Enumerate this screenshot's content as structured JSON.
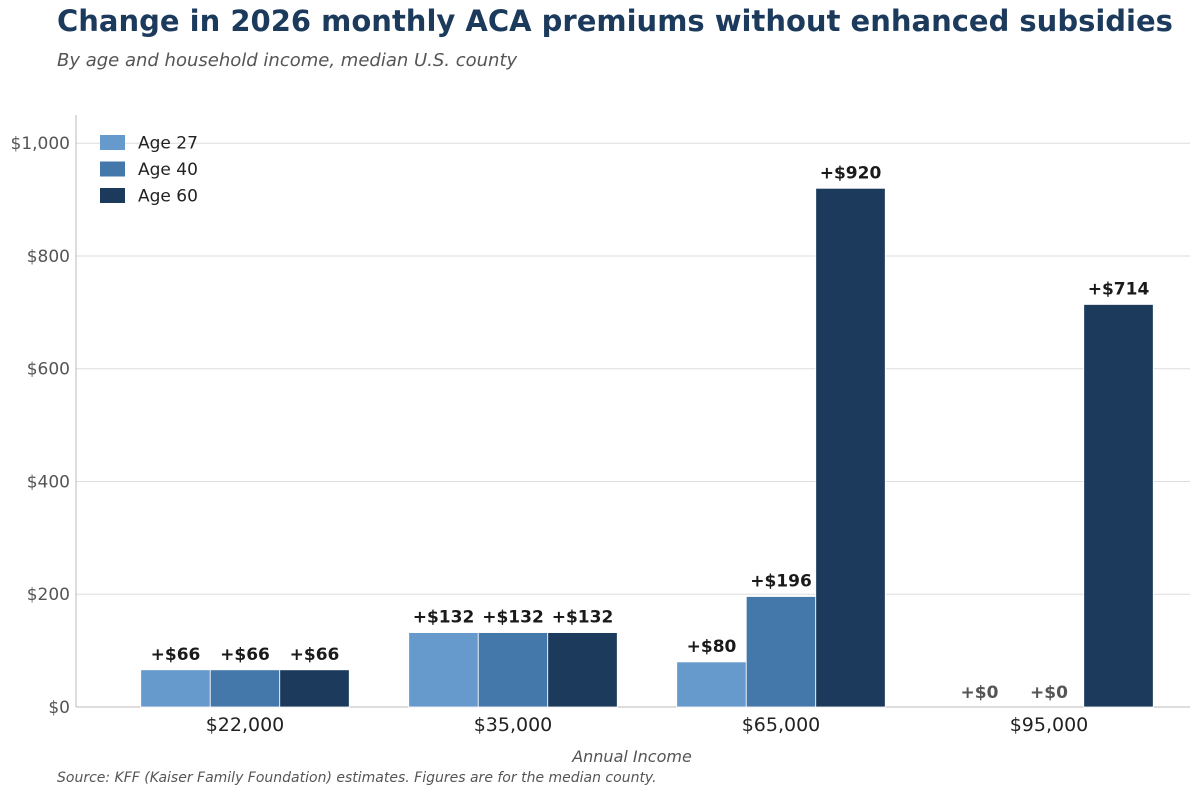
{
  "chart_data": {
    "type": "bar",
    "title": "Change in 2026 monthly ACA premiums without enhanced subsidies",
    "subtitle": "By age and household income, median U.S. county",
    "xlabel": "Annual Income",
    "ylabel": "",
    "categories": [
      "$22,000",
      "$35,000",
      "$65,000",
      "$95,000"
    ],
    "series": [
      {
        "name": "Age 27",
        "color": "#6699cc",
        "values": [
          66,
          132,
          80,
          0
        ]
      },
      {
        "name": "Age 40",
        "color": "#4477aa",
        "values": [
          66,
          132,
          196,
          0
        ]
      },
      {
        "name": "Age 60",
        "color": "#1b3a5c",
        "values": [
          66,
          132,
          920,
          714
        ]
      }
    ],
    "data_labels": [
      [
        "+$66",
        "+$132",
        "+$80",
        "+$0"
      ],
      [
        "+$66",
        "+$132",
        "+$196",
        "+$0"
      ],
      [
        "+$66",
        "+$132",
        "+$920",
        "+$714"
      ]
    ],
    "yticks": [
      0,
      200,
      400,
      600,
      800,
      1000
    ],
    "ytick_labels": [
      "$0",
      "$200",
      "$400",
      "$600",
      "$800",
      "$1,000"
    ],
    "ylim": [
      0,
      1050
    ],
    "grid": true,
    "legend": "top-left",
    "source": "Source: KFF (Kaiser Family Foundation) estimates. Figures are for the median county."
  }
}
